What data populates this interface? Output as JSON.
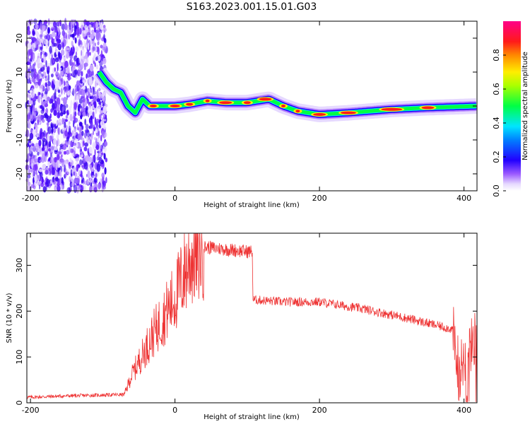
{
  "title": "S163.2023.001.15.01.G03",
  "chart_data": [
    {
      "type": "heatmap",
      "xlabel": "Height of straight line (km)",
      "ylabel": "Frequency (Hz)",
      "xlim": [
        -205,
        418
      ],
      "ylim": [
        -25,
        25
      ],
      "x_ticks": [
        -200,
        0,
        200,
        400
      ],
      "y_ticks": [
        -20,
        -10,
        0,
        10,
        20
      ],
      "colorbar": {
        "label": "Normalized spectral amplitude",
        "range": [
          0,
          1
        ],
        "ticks": [
          0.0,
          0.2,
          0.4,
          0.6,
          0.8
        ]
      },
      "ridge": {
        "x": [
          -105,
          -95,
          -85,
          -75,
          -65,
          -55,
          -45,
          -35,
          -20,
          0,
          20,
          45,
          70,
          100,
          130,
          150,
          170,
          200,
          240,
          300,
          350,
          418
        ],
        "y": [
          10,
          7,
          5,
          4,
          0,
          -2,
          2,
          0,
          0,
          0,
          0.5,
          1.5,
          1,
          1,
          2,
          0,
          -1.5,
          -2.5,
          -2,
          -1,
          -0.5,
          0
        ]
      }
    },
    {
      "type": "line",
      "xlabel": "Height of straight line (km)",
      "ylabel": "SNR (10 * v/v)",
      "xlim": [
        -205,
        418
      ],
      "ylim": [
        0,
        370
      ],
      "x_ticks": [
        -200,
        0,
        200,
        400
      ],
      "y_ticks": [
        0,
        100,
        200,
        300
      ],
      "color": "#ee3333",
      "envelope": {
        "x": [
          -205,
          -150,
          -70,
          -60,
          -30,
          0,
          20,
          40,
          100,
          107,
          108,
          150,
          200,
          260,
          320,
          385,
          388,
          395,
          418
        ],
        "y": [
          12,
          15,
          18,
          60,
          150,
          230,
          310,
          340,
          330,
          330,
          225,
          220,
          220,
          205,
          185,
          160,
          100,
          80,
          150
        ]
      }
    }
  ]
}
